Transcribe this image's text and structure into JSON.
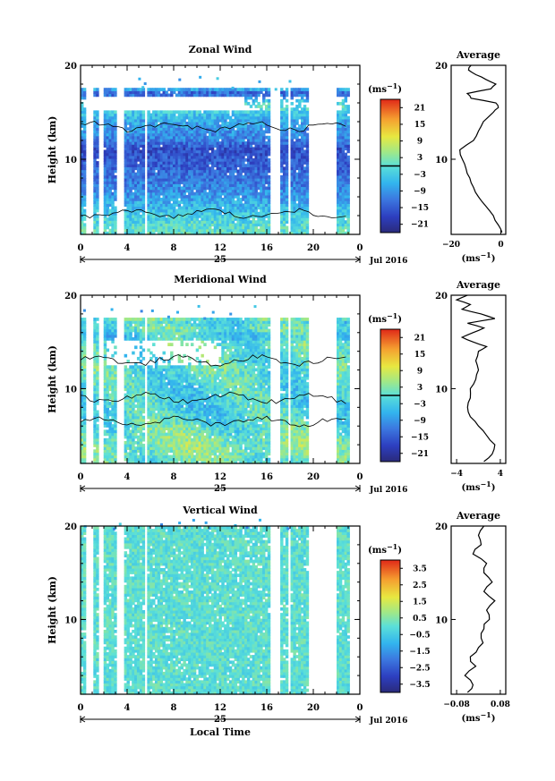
{
  "chart_data": [
    {
      "type": "heatmap",
      "title": "Zonal Wind",
      "ylabel": "Height (km)",
      "x": {
        "range": [
          0,
          24
        ],
        "ticks": [
          0,
          4,
          8,
          12,
          16,
          20,
          0
        ],
        "tick_values": [
          0,
          4,
          8,
          12,
          16,
          20,
          24
        ]
      },
      "y": {
        "range": [
          2,
          20
        ],
        "ticks": [
          10,
          20
        ]
      },
      "date_label": "25",
      "month_label": "Jul 2016",
      "colorbar": {
        "unit_base": "(ms",
        "unit_exp": "−1",
        "unit_close": ")",
        "min": -24,
        "max": 24,
        "ticks": [
          21,
          15,
          9,
          3,
          -3,
          -9,
          -15,
          -21
        ],
        "tick_labels": [
          "21",
          "15",
          "9",
          "3",
          "−3",
          "−9",
          "−15",
          "−21"
        ],
        "contour_at": 0
      },
      "average_profile": {
        "title": "Average",
        "x_range": [
          -20,
          2
        ],
        "x_ticks": [
          -20,
          0
        ],
        "x_tick_labels": [
          "−20",
          "0"
        ],
        "xlabel_base": "(ms",
        "xlabel_exp": "−1",
        "xlabel_close": ")",
        "heights": [
          2.2,
          3,
          4,
          5,
          6,
          7,
          8,
          9,
          10,
          11,
          12,
          13,
          14,
          15,
          15.5,
          16,
          16.5,
          17,
          17.5,
          18,
          18.5,
          19,
          19.5,
          20
        ],
        "values": [
          0.5,
          -1,
          -3,
          -6,
          -9,
          -11,
          -12.5,
          -14,
          -15.5,
          -16.5,
          -11,
          -9,
          -7,
          -3,
          -1,
          -2,
          -12,
          -13.5,
          -4,
          -2,
          -6,
          -10,
          -13,
          -12
        ]
      }
    },
    {
      "type": "heatmap",
      "title": "Meridional Wind",
      "ylabel": "Height (km)",
      "x": {
        "range": [
          0,
          24
        ],
        "ticks": [
          0,
          4,
          8,
          12,
          16,
          20,
          0
        ],
        "tick_values": [
          0,
          4,
          8,
          12,
          16,
          20,
          24
        ]
      },
      "y": {
        "range": [
          2,
          20
        ],
        "ticks": [
          10,
          20
        ]
      },
      "date_label": "25",
      "month_label": "Jul 2016",
      "colorbar": {
        "unit_base": "(ms",
        "unit_exp": "−1",
        "unit_close": ")",
        "min": -24,
        "max": 24,
        "ticks": [
          21,
          15,
          9,
          3,
          -3,
          -9,
          -15,
          -21
        ],
        "tick_labels": [
          "21",
          "15",
          "9",
          "3",
          "−3",
          "−9",
          "−15",
          "−21"
        ],
        "contour_at": 0
      },
      "average_profile": {
        "title": "Average",
        "x_range": [
          -5,
          5
        ],
        "x_ticks": [
          -4,
          4
        ],
        "x_tick_labels": [
          "−4",
          "4"
        ],
        "xlabel_base": "(ms",
        "xlabel_exp": "−1",
        "xlabel_close": ")",
        "heights": [
          2.2,
          3,
          4,
          5,
          6,
          7,
          8,
          9,
          10,
          11,
          12,
          13,
          14,
          14.5,
          15,
          15.5,
          16,
          16.5,
          17,
          17.5,
          18,
          18.5,
          19,
          19.5,
          20
        ],
        "values": [
          1,
          2.5,
          3,
          1.5,
          0,
          -1.5,
          -2,
          -1.5,
          -1.5,
          -0.5,
          0,
          -0.5,
          0,
          1.5,
          -1,
          -3,
          -1,
          1,
          -2,
          3,
          0.5,
          -3,
          -1.5,
          -4,
          -2
        ]
      }
    },
    {
      "type": "heatmap",
      "title": "Vertical Wind",
      "ylabel": "Height (km)",
      "xlabel": "Local Time",
      "x": {
        "range": [
          0,
          24
        ],
        "ticks": [
          0,
          4,
          8,
          12,
          16,
          20,
          0
        ],
        "tick_values": [
          0,
          4,
          8,
          12,
          16,
          20,
          24
        ]
      },
      "y": {
        "range": [
          2,
          20
        ],
        "ticks": [
          10,
          20
        ]
      },
      "date_label": "25",
      "month_label": "Jul 2016",
      "colorbar": {
        "unit_base": "(ms",
        "unit_exp": "−1",
        "unit_close": ")",
        "min": -4,
        "max": 4,
        "ticks": [
          3.5,
          2.5,
          1.5,
          0.5,
          -0.5,
          -1.5,
          -2.5,
          -3.5
        ],
        "tick_labels": [
          "3.5",
          "2.5",
          "1.5",
          "0.5",
          "−0.5",
          "−1.5",
          "−2.5",
          "−3.5"
        ]
      },
      "average_profile": {
        "title": "Average",
        "x_range": [
          -0.1,
          0.1
        ],
        "x_ticks": [
          -0.08,
          0.08
        ],
        "x_tick_labels": [
          "−0.08",
          "0.08"
        ],
        "xlabel_base": "(ms",
        "xlabel_exp": "−1",
        "xlabel_close": ")",
        "heights": [
          2.2,
          3,
          4,
          5,
          6,
          7,
          8,
          9,
          10,
          11,
          12,
          13,
          14,
          15,
          16,
          17,
          18,
          19,
          20
        ],
        "values": [
          -0.04,
          -0.02,
          -0.05,
          -0.01,
          -0.03,
          0.0,
          0.01,
          0.02,
          0.04,
          0.03,
          0.06,
          0.02,
          0.05,
          0.02,
          0.03,
          -0.02,
          0.01,
          0.0,
          0.02
        ]
      }
    }
  ]
}
